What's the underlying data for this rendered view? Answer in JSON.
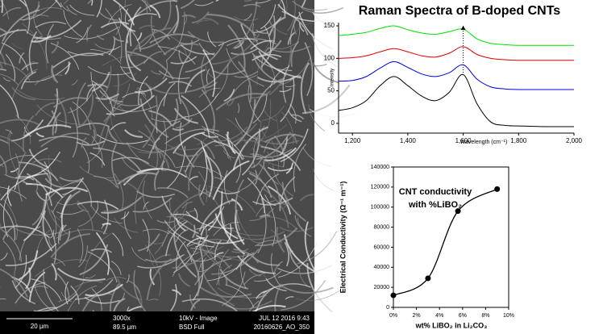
{
  "image_info": {
    "scale_bar": "20 µm",
    "magnification": "3000x",
    "field_width": "89.5 µm",
    "voltage": "10kV - Image",
    "detector": "BSD Full",
    "date": "JUL 12 2016  9:43",
    "file": "20160626_AO_350"
  },
  "chart_data": [
    {
      "type": "line",
      "title": "Raman Spectra of B-doped CNTs",
      "x_label": "Wavelength (cm⁻¹)",
      "y_label": "Intensity",
      "x": [
        1150,
        1200,
        1250,
        1300,
        1350,
        1400,
        1450,
        1500,
        1550,
        1600,
        1650,
        1700,
        1750,
        1800,
        1900,
        2000
      ],
      "series": [
        {
          "color": "#00e000",
          "values": [
            135,
            137,
            140,
            146,
            150,
            144,
            139,
            137,
            141,
            145,
            130,
            123,
            121,
            120,
            120,
            120
          ]
        },
        {
          "color": "#e00000",
          "values": [
            100,
            101,
            104,
            110,
            115,
            110,
            104,
            102,
            108,
            118,
            106,
            100,
            98,
            97,
            97,
            97
          ]
        },
        {
          "color": "#0000e0",
          "values": [
            65,
            66,
            72,
            85,
            95,
            86,
            76,
            72,
            78,
            90,
            68,
            56,
            53,
            52,
            52,
            52
          ]
        },
        {
          "color": "#000000",
          "values": [
            20,
            24,
            35,
            58,
            72,
            58,
            42,
            35,
            48,
            75,
            30,
            2,
            -3,
            -4,
            -5,
            -5
          ]
        }
      ],
      "xlim": [
        1150,
        2000
      ],
      "ylim": [
        -15,
        155
      ],
      "xticks": [
        {
          "value": 1200,
          "label": "1,200"
        },
        {
          "value": 1400,
          "label": "1,400"
        },
        {
          "value": 1600,
          "label": "1,600"
        },
        {
          "value": 1800,
          "label": "1,800"
        },
        {
          "value": 2000,
          "label": "2,000"
        }
      ],
      "yticks": [
        0,
        50,
        100,
        150
      ]
    },
    {
      "type": "line",
      "title": "CNT conductivity",
      "subtitle": "with %LiBO₂",
      "x_label": "wt% LiBO₂ in Li₂CO₃",
      "y_label": "Electrical Conductivity (Ω⁻¹ m⁻¹)",
      "x": [
        0,
        3,
        5.6,
        9
      ],
      "series": [
        {
          "color": "#000000",
          "values": [
            12000,
            29000,
            96000,
            118000
          ]
        }
      ],
      "xlim": [
        0,
        10
      ],
      "ylim": [
        0,
        140000
      ],
      "xticks": [
        {
          "value": 0,
          "label": "0%"
        },
        {
          "value": 2,
          "label": "2%"
        },
        {
          "value": 4,
          "label": "4%"
        },
        {
          "value": 6,
          "label": "6%"
        },
        {
          "value": 8,
          "label": "8%"
        },
        {
          "value": 10,
          "label": "10%"
        }
      ],
      "yticks": [
        0,
        20000,
        40000,
        60000,
        80000,
        100000,
        120000,
        140000
      ]
    }
  ]
}
